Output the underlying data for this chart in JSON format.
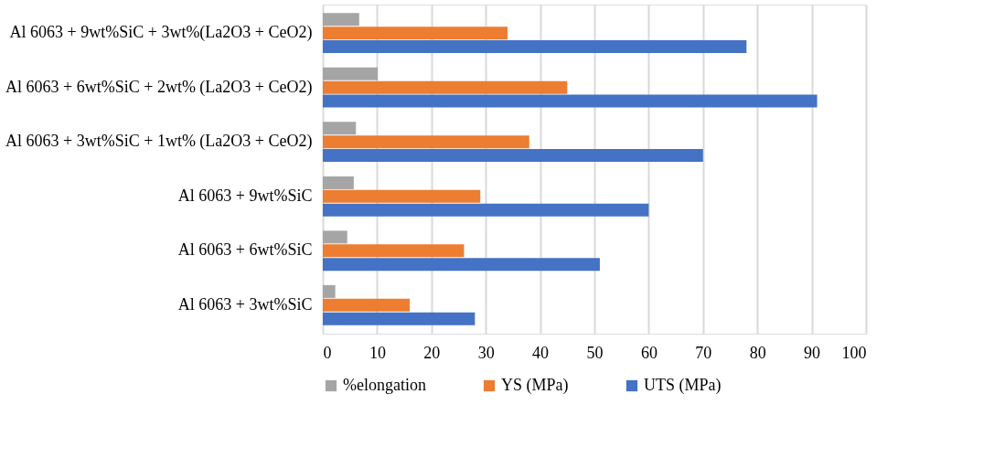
{
  "chart_data": {
    "type": "bar",
    "orientation": "horizontal",
    "categories": [
      "Al 6063 + 9wt%SiC + 3wt%(La2O3 + CeO2)",
      "Al 6063 + 6wt%SiC + 2wt% (La2O3 + CeO2)",
      "Al 6063 + 3wt%SiC + 1wt% (La2O3 + CeO2)",
      "Al 6063 + 9wt%SiC",
      "Al 6063 + 6wt%SiC",
      "Al 6063 + 3wt%SiC"
    ],
    "series": [
      {
        "name": "%elongation",
        "color": "#a5a5a5",
        "values": [
          6.7,
          10.1,
          6.1,
          5.7,
          4.5,
          2.3
        ]
      },
      {
        "name": "YS (MPa)",
        "color": "#ed7d31",
        "values": [
          34,
          45,
          38,
          29,
          26,
          16
        ]
      },
      {
        "name": "UTS (MPa)",
        "color": "#4472c4",
        "values": [
          78,
          91,
          70,
          60,
          51,
          28
        ]
      }
    ],
    "xlim": [
      0,
      100
    ],
    "xticks": [
      0,
      10,
      20,
      30,
      40,
      50,
      60,
      70,
      80,
      90,
      100
    ],
    "grid": "x",
    "legend": "bottom"
  }
}
